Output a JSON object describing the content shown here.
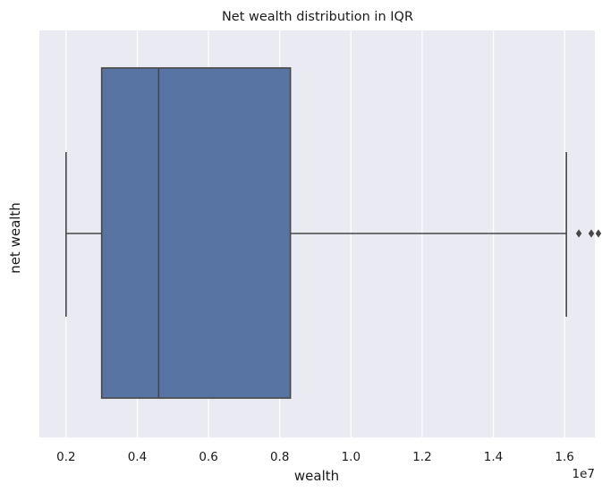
{
  "chart_data": {
    "type": "box",
    "title": "Net wealth distribution in IQR",
    "xlabel": "wealth",
    "ylabel": "net wealth",
    "x_offset_label": "1e7",
    "x_scale": 10000000,
    "xlim": [
      0.125,
      1.685
    ],
    "xticks": [
      0.2,
      0.4,
      0.6,
      0.8,
      1.0,
      1.2,
      1.4,
      1.6
    ],
    "xtick_labels": [
      "0.2",
      "0.4",
      "0.6",
      "0.8",
      "1.0",
      "1.2",
      "1.4",
      "1.6"
    ],
    "grid": true,
    "box": {
      "whisker_low": 0.2,
      "q1": 0.3,
      "median": 0.46,
      "q3": 0.83,
      "whisker_high": 1.605
    },
    "outliers": [
      1.64,
      1.675,
      1.695
    ],
    "colors": {
      "background": "#eaeaf2",
      "grid": "#ffffff",
      "box_fill": "#5874a2",
      "line": "#474747"
    }
  }
}
